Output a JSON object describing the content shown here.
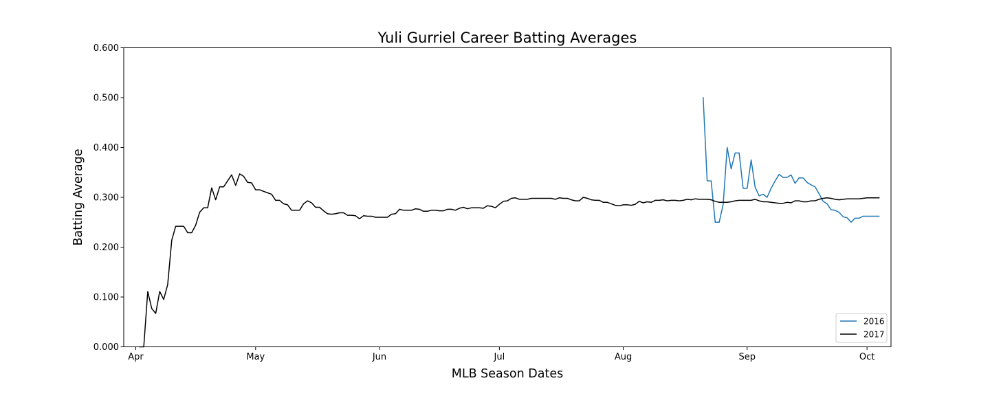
{
  "chart_data": {
    "type": "line",
    "title": "Yuli Gurriel Career Batting Averages",
    "xlabel": "MLB Season Dates",
    "ylabel": "Batting Average",
    "ylim": [
      0,
      0.6
    ],
    "xlim": [
      "03-29",
      "10-07"
    ],
    "x_ticks": [
      {
        "date": "04-01",
        "label": "Apr"
      },
      {
        "date": "05-01",
        "label": "May"
      },
      {
        "date": "06-01",
        "label": "Jun"
      },
      {
        "date": "07-01",
        "label": "Jul"
      },
      {
        "date": "08-01",
        "label": "Aug"
      },
      {
        "date": "09-01",
        "label": "Sep"
      },
      {
        "date": "10-01",
        "label": "Oct"
      }
    ],
    "y_ticks": [
      "0.000",
      "0.100",
      "0.200",
      "0.300",
      "0.400",
      "0.500",
      "0.600"
    ],
    "grid": false,
    "legend_position": "lower-right",
    "series": [
      {
        "name": "2016",
        "color": "#1f77b4",
        "points": [
          [
            "08-21",
            0.5
          ],
          [
            "08-22",
            0.333
          ],
          [
            "08-23",
            0.333
          ],
          [
            "08-24",
            0.25
          ],
          [
            "08-25",
            0.25
          ],
          [
            "08-26",
            0.286
          ],
          [
            "08-27",
            0.4
          ],
          [
            "08-28",
            0.357
          ],
          [
            "08-29",
            0.389
          ],
          [
            "08-30",
            0.389
          ],
          [
            "08-31",
            0.318
          ],
          [
            "09-01",
            0.318
          ],
          [
            "09-02",
            0.375
          ],
          [
            "09-03",
            0.32
          ],
          [
            "09-04",
            0.303
          ],
          [
            "09-05",
            0.306
          ],
          [
            "09-06",
            0.3
          ],
          [
            "09-07",
            0.318
          ],
          [
            "09-08",
            0.333
          ],
          [
            "09-09",
            0.346
          ],
          [
            "09-10",
            0.34
          ],
          [
            "09-11",
            0.34
          ],
          [
            "09-12",
            0.345
          ],
          [
            "09-13",
            0.328
          ],
          [
            "09-14",
            0.339
          ],
          [
            "09-15",
            0.339
          ],
          [
            "09-16",
            0.33
          ],
          [
            "09-17",
            0.325
          ],
          [
            "09-18",
            0.321
          ],
          [
            "09-19",
            0.307
          ],
          [
            "09-20",
            0.292
          ],
          [
            "09-21",
            0.287
          ],
          [
            "09-22",
            0.275
          ],
          [
            "09-23",
            0.274
          ],
          [
            "09-24",
            0.27
          ],
          [
            "09-25",
            0.261
          ],
          [
            "09-26",
            0.259
          ],
          [
            "09-27",
            0.25
          ],
          [
            "09-28",
            0.258
          ],
          [
            "09-29",
            0.258
          ],
          [
            "09-30",
            0.262
          ],
          [
            "10-01",
            0.262
          ],
          [
            "10-02",
            0.262
          ],
          [
            "10-03",
            0.262
          ],
          [
            "10-04",
            0.262
          ]
        ]
      },
      {
        "name": "2017",
        "color": "#000000",
        "points": [
          [
            "04-02",
            0.0
          ],
          [
            "04-03",
            0.0
          ],
          [
            "04-04",
            0.111
          ],
          [
            "04-05",
            0.077
          ],
          [
            "04-06",
            0.067
          ],
          [
            "04-07",
            0.111
          ],
          [
            "04-08",
            0.095
          ],
          [
            "04-09",
            0.125
          ],
          [
            "04-10",
            0.214
          ],
          [
            "04-11",
            0.242
          ],
          [
            "04-12",
            0.242
          ],
          [
            "04-13",
            0.242
          ],
          [
            "04-14",
            0.229
          ],
          [
            "04-15",
            0.229
          ],
          [
            "04-16",
            0.244
          ],
          [
            "04-17",
            0.27
          ],
          [
            "04-18",
            0.279
          ],
          [
            "04-19",
            0.279
          ],
          [
            "04-20",
            0.319
          ],
          [
            "04-21",
            0.295
          ],
          [
            "04-22",
            0.321
          ],
          [
            "04-23",
            0.321
          ],
          [
            "04-24",
            0.333
          ],
          [
            "04-25",
            0.345
          ],
          [
            "04-26",
            0.324
          ],
          [
            "04-27",
            0.347
          ],
          [
            "04-28",
            0.342
          ],
          [
            "04-29",
            0.33
          ],
          [
            "04-30",
            0.329
          ],
          [
            "05-01",
            0.315
          ],
          [
            "05-02",
            0.315
          ],
          [
            "05-03",
            0.312
          ],
          [
            "05-04",
            0.309
          ],
          [
            "05-05",
            0.306
          ],
          [
            "05-06",
            0.294
          ],
          [
            "05-07",
            0.294
          ],
          [
            "05-08",
            0.287
          ],
          [
            "05-09",
            0.285
          ],
          [
            "05-10",
            0.274
          ],
          [
            "05-11",
            0.274
          ],
          [
            "05-12",
            0.274
          ],
          [
            "05-13",
            0.287
          ],
          [
            "05-14",
            0.293
          ],
          [
            "05-15",
            0.289
          ],
          [
            "05-16",
            0.28
          ],
          [
            "05-17",
            0.28
          ],
          [
            "05-18",
            0.273
          ],
          [
            "05-19",
            0.267
          ],
          [
            "05-20",
            0.266
          ],
          [
            "05-21",
            0.267
          ],
          [
            "05-22",
            0.269
          ],
          [
            "05-23",
            0.269
          ],
          [
            "05-24",
            0.264
          ],
          [
            "05-25",
            0.264
          ],
          [
            "05-26",
            0.263
          ],
          [
            "05-27",
            0.257
          ],
          [
            "05-28",
            0.263
          ],
          [
            "05-29",
            0.262
          ],
          [
            "05-30",
            0.262
          ],
          [
            "05-31",
            0.26
          ],
          [
            "06-01",
            0.26
          ],
          [
            "06-02",
            0.26
          ],
          [
            "06-03",
            0.26
          ],
          [
            "06-04",
            0.266
          ],
          [
            "06-05",
            0.267
          ],
          [
            "06-06",
            0.276
          ],
          [
            "06-07",
            0.274
          ],
          [
            "06-08",
            0.274
          ],
          [
            "06-09",
            0.274
          ],
          [
            "06-10",
            0.277
          ],
          [
            "06-11",
            0.276
          ],
          [
            "06-12",
            0.272
          ],
          [
            "06-13",
            0.272
          ],
          [
            "06-14",
            0.274
          ],
          [
            "06-15",
            0.274
          ],
          [
            "06-16",
            0.273
          ],
          [
            "06-17",
            0.273
          ],
          [
            "06-18",
            0.276
          ],
          [
            "06-19",
            0.276
          ],
          [
            "06-20",
            0.274
          ],
          [
            "06-21",
            0.278
          ],
          [
            "06-22",
            0.28
          ],
          [
            "06-23",
            0.277
          ],
          [
            "06-24",
            0.279
          ],
          [
            "06-25",
            0.279
          ],
          [
            "06-26",
            0.279
          ],
          [
            "06-27",
            0.278
          ],
          [
            "06-28",
            0.283
          ],
          [
            "06-29",
            0.282
          ],
          [
            "06-30",
            0.279
          ],
          [
            "07-01",
            0.286
          ],
          [
            "07-02",
            0.292
          ],
          [
            "07-03",
            0.293
          ],
          [
            "07-04",
            0.298
          ],
          [
            "07-05",
            0.299
          ],
          [
            "07-06",
            0.296
          ],
          [
            "07-07",
            0.296
          ],
          [
            "07-08",
            0.296
          ],
          [
            "07-09",
            0.298
          ],
          [
            "07-14",
            0.298
          ],
          [
            "07-15",
            0.296
          ],
          [
            "07-16",
            0.299
          ],
          [
            "07-17",
            0.298
          ],
          [
            "07-18",
            0.298
          ],
          [
            "07-19",
            0.295
          ],
          [
            "07-20",
            0.293
          ],
          [
            "07-21",
            0.293
          ],
          [
            "07-22",
            0.3
          ],
          [
            "07-23",
            0.298
          ],
          [
            "07-24",
            0.295
          ],
          [
            "07-25",
            0.294
          ],
          [
            "07-26",
            0.294
          ],
          [
            "07-27",
            0.29
          ],
          [
            "07-28",
            0.29
          ],
          [
            "07-29",
            0.287
          ],
          [
            "07-30",
            0.284
          ],
          [
            "07-31",
            0.283
          ],
          [
            "08-01",
            0.285
          ],
          [
            "08-02",
            0.285
          ],
          [
            "08-03",
            0.284
          ],
          [
            "08-04",
            0.286
          ],
          [
            "08-05",
            0.292
          ],
          [
            "08-06",
            0.289
          ],
          [
            "08-07",
            0.291
          ],
          [
            "08-08",
            0.29
          ],
          [
            "08-09",
            0.294
          ],
          [
            "08-10",
            0.294
          ],
          [
            "08-11",
            0.295
          ],
          [
            "08-12",
            0.293
          ],
          [
            "08-13",
            0.294
          ],
          [
            "08-14",
            0.294
          ],
          [
            "08-15",
            0.293
          ],
          [
            "08-16",
            0.294
          ],
          [
            "08-17",
            0.296
          ],
          [
            "08-18",
            0.295
          ],
          [
            "08-19",
            0.297
          ],
          [
            "08-20",
            0.296
          ],
          [
            "08-21",
            0.296
          ],
          [
            "08-22",
            0.296
          ],
          [
            "08-23",
            0.295
          ],
          [
            "08-24",
            0.292
          ],
          [
            "08-25",
            0.29
          ],
          [
            "08-26",
            0.29
          ],
          [
            "08-27",
            0.29
          ],
          [
            "08-28",
            0.291
          ],
          [
            "08-29",
            0.293
          ],
          [
            "08-30",
            0.294
          ],
          [
            "08-31",
            0.294
          ],
          [
            "09-01",
            0.294
          ],
          [
            "09-02",
            0.294
          ],
          [
            "09-03",
            0.296
          ],
          [
            "09-04",
            0.293
          ],
          [
            "09-05",
            0.291
          ],
          [
            "09-06",
            0.291
          ],
          [
            "09-07",
            0.29
          ],
          [
            "09-08",
            0.289
          ],
          [
            "09-09",
            0.288
          ],
          [
            "09-10",
            0.288
          ],
          [
            "09-11",
            0.29
          ],
          [
            "09-12",
            0.289
          ],
          [
            "09-13",
            0.293
          ],
          [
            "09-14",
            0.293
          ],
          [
            "09-15",
            0.291
          ],
          [
            "09-16",
            0.291
          ],
          [
            "09-17",
            0.293
          ],
          [
            "09-18",
            0.293
          ],
          [
            "09-19",
            0.296
          ],
          [
            "09-20",
            0.298
          ],
          [
            "09-21",
            0.299
          ],
          [
            "09-22",
            0.298
          ],
          [
            "09-23",
            0.296
          ],
          [
            "09-24",
            0.295
          ],
          [
            "09-25",
            0.296
          ],
          [
            "09-26",
            0.297
          ],
          [
            "09-27",
            0.297
          ],
          [
            "09-28",
            0.297
          ],
          [
            "09-29",
            0.297
          ],
          [
            "09-30",
            0.298
          ],
          [
            "10-01",
            0.299
          ],
          [
            "10-02",
            0.299
          ],
          [
            "10-03",
            0.299
          ],
          [
            "10-04",
            0.299
          ]
        ]
      }
    ]
  }
}
